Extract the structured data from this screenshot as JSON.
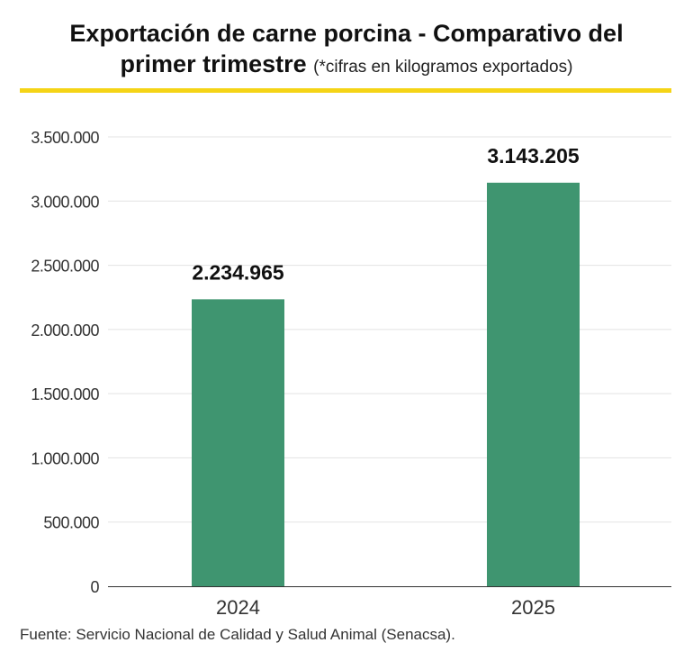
{
  "chart_data": {
    "type": "bar",
    "title": "Exportación de carne porcina - Comparativo del",
    "title_line2": "primer trimestre",
    "subtitle": "(*cifras en kilogramos exportados)",
    "categories": [
      "2024",
      "2025"
    ],
    "values": [
      2234965,
      3143205
    ],
    "value_labels": [
      "2.234.965",
      "3.143.205"
    ],
    "xlabel": "",
    "ylabel": "",
    "ylim": [
      0,
      3500000
    ],
    "yticks": [
      0,
      500000,
      1000000,
      1500000,
      2000000,
      2500000,
      3000000,
      3500000
    ],
    "ytick_labels": [
      "0",
      "500.000",
      "1.000.000",
      "1.500.000",
      "2.000.000",
      "2.500.000",
      "3.000.000",
      "3.500.000"
    ],
    "grid": true,
    "bar_color": "#3f9570",
    "accent_color": "#f5d416"
  },
  "source": "Fuente: Servicio Nacional de Calidad y Salud Animal (Senacsa)."
}
